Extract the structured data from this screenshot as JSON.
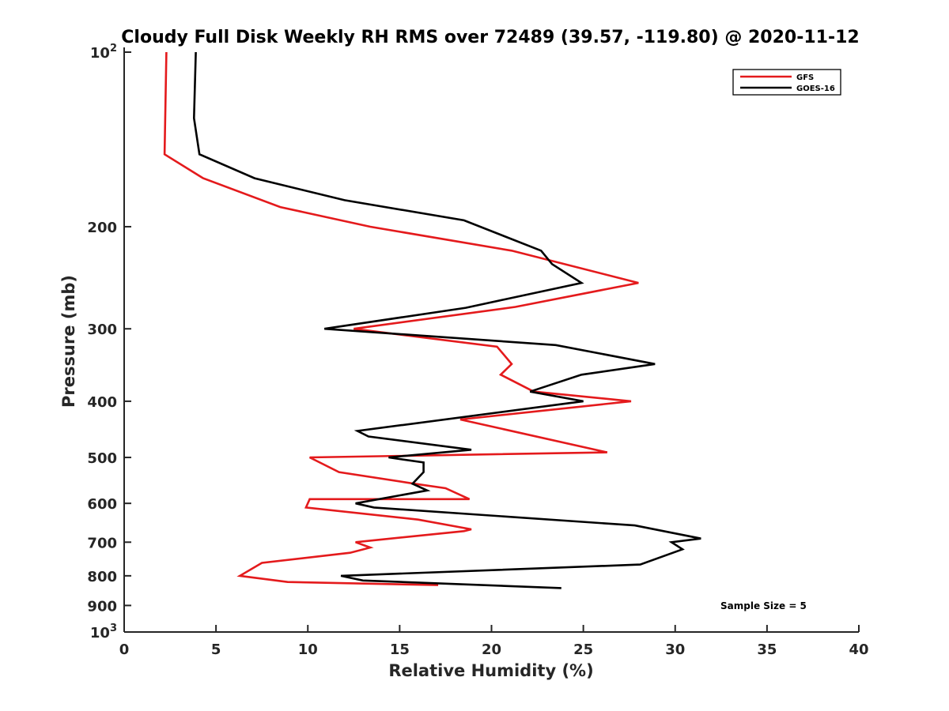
{
  "chart_data": {
    "type": "line",
    "title": "Cloudy Full Disk Weekly RH RMS over 72489 (39.57, -119.80) @ 2020-11-12",
    "xlabel": "Relative Humidity (%)",
    "ylabel": "Pressure (mb)",
    "xlim": [
      0,
      40
    ],
    "ylim": [
      100,
      1000
    ],
    "y_scale": "log",
    "y_reversed": true,
    "grid": false,
    "legend_position": "top-right",
    "x_ticks": [
      0,
      5,
      10,
      15,
      20,
      25,
      30,
      35,
      40
    ],
    "x_tick_labels": [
      "0",
      "5",
      "10",
      "15",
      "20",
      "25",
      "30",
      "35",
      "40"
    ],
    "y_ticks": [
      100,
      200,
      300,
      400,
      500,
      600,
      700,
      800,
      900,
      1000
    ],
    "y_tick_labels": [
      {
        "base": "10",
        "exp": "2"
      },
      {
        "base": "200",
        "exp": ""
      },
      {
        "base": "300",
        "exp": ""
      },
      {
        "base": "400",
        "exp": ""
      },
      {
        "base": "500",
        "exp": ""
      },
      {
        "base": "600",
        "exp": ""
      },
      {
        "base": "700",
        "exp": ""
      },
      {
        "base": "800",
        "exp": ""
      },
      {
        "base": "900",
        "exp": ""
      },
      {
        "base": "10",
        "exp": "3"
      }
    ],
    "annotation": "Sample Size = 5",
    "series": [
      {
        "name": "GFS",
        "color": "#e41a1c",
        "x": [
          2.3,
          2.2,
          4.3,
          8.5,
          13.4,
          21.1,
          28.0,
          21.3,
          12.5,
          20.3,
          21.1,
          20.5,
          22.3,
          27.6,
          18.3,
          26.3,
          10.1,
          11.7,
          15.8,
          17.5,
          18.8,
          10.1,
          9.9,
          16.0,
          18.9,
          18.5,
          12.6,
          13.4,
          12.3,
          7.5,
          6.3,
          8.9,
          17.1
        ],
        "y": [
          100,
          150,
          165,
          185,
          200,
          220,
          250,
          275,
          300,
          322,
          345,
          360,
          385,
          400,
          430,
          490,
          500,
          530,
          555,
          565,
          590,
          590,
          610,
          640,
          665,
          670,
          700,
          715,
          730,
          760,
          800,
          820,
          830
        ]
      },
      {
        "name": "GOES-16",
        "color": "#000000",
        "x": [
          3.9,
          3.8,
          4.1,
          7.1,
          12.0,
          18.5,
          22.7,
          23.3,
          24.9,
          18.6,
          10.9,
          23.5,
          28.9,
          24.9,
          22.1,
          25.0,
          12.7,
          13.3,
          18.9,
          14.4,
          16.3,
          16.3,
          15.7,
          16.5,
          12.6,
          13.6,
          27.8,
          31.4,
          29.8,
          30.4,
          28.1,
          11.8,
          13.0,
          23.8
        ],
        "y": [
          100,
          130,
          150,
          165,
          180,
          195,
          220,
          232,
          250,
          276,
          300,
          320,
          345,
          360,
          385,
          400,
          450,
          460,
          485,
          500,
          510,
          530,
          555,
          570,
          600,
          610,
          655,
          690,
          700,
          720,
          765,
          800,
          815,
          840
        ]
      }
    ]
  }
}
